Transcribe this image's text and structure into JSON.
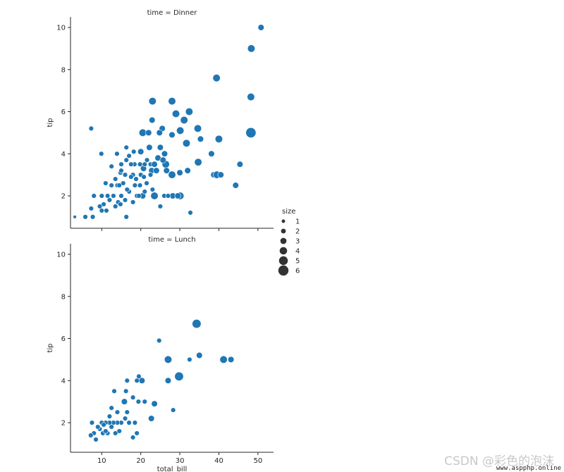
{
  "chart_data": {
    "type": "scatter",
    "x_field": "total_bill",
    "y_field": "tip",
    "xlabel": "total_bill",
    "ylabel": "tip",
    "xlim": [
      2,
      54
    ],
    "ylim": [
      0.5,
      10.5
    ],
    "x_ticks": [
      10,
      20,
      30,
      40,
      50
    ],
    "y_ticks": [
      2,
      4,
      6,
      8,
      10
    ],
    "grid": false,
    "point_color": "#1f77b4",
    "size_legend": {
      "title": "size",
      "placement": "right",
      "entries": [
        1,
        2,
        3,
        4,
        5,
        6
      ]
    },
    "panels": [
      {
        "title": "time = Dinner",
        "points": [
          [
            50.8,
            10.0,
            3
          ],
          [
            48.3,
            9.0,
            4
          ],
          [
            39.4,
            7.6,
            4
          ],
          [
            48.2,
            6.7,
            4
          ],
          [
            23.0,
            6.5,
            4
          ],
          [
            28.0,
            6.5,
            4
          ],
          [
            32.4,
            6.0,
            4
          ],
          [
            29.0,
            5.9,
            4
          ],
          [
            31.1,
            5.6,
            4
          ],
          [
            22.9,
            5.6,
            3
          ],
          [
            7.3,
            5.2,
            2
          ],
          [
            25.5,
            5.2,
            3
          ],
          [
            30.1,
            5.1,
            4
          ],
          [
            34.6,
            5.2,
            4
          ],
          [
            48.2,
            5.0,
            6
          ],
          [
            20.5,
            5.0,
            4
          ],
          [
            22.0,
            5.0,
            3
          ],
          [
            24.8,
            5.0,
            3
          ],
          [
            35.3,
            4.7,
            3
          ],
          [
            28.0,
            4.9,
            3
          ],
          [
            40.0,
            4.7,
            4
          ],
          [
            31.7,
            4.5,
            4
          ],
          [
            25.0,
            4.3,
            3
          ],
          [
            22.2,
            4.3,
            3
          ],
          [
            16.3,
            4.3,
            2
          ],
          [
            38.1,
            4.0,
            3
          ],
          [
            26.1,
            4.0,
            3
          ],
          [
            20.0,
            4.1,
            3
          ],
          [
            9.9,
            4.0,
            2
          ],
          [
            13.9,
            4.0,
            2
          ],
          [
            18.2,
            4.1,
            2
          ],
          [
            17.0,
            3.9,
            2
          ],
          [
            21.6,
            3.7,
            2
          ],
          [
            24.4,
            3.8,
            3
          ],
          [
            26.4,
            3.5,
            4
          ],
          [
            22.5,
            3.5,
            2
          ],
          [
            34.7,
            3.6,
            4
          ],
          [
            45.4,
            3.5,
            3
          ],
          [
            19.8,
            3.5,
            2
          ],
          [
            18.4,
            3.5,
            2
          ],
          [
            16.3,
            3.7,
            2
          ],
          [
            12.5,
            3.4,
            2
          ],
          [
            14.8,
            3.1,
            2
          ],
          [
            15.0,
            3.2,
            2
          ],
          [
            20.7,
            3.3,
            3
          ],
          [
            22.8,
            3.2,
            3
          ],
          [
            26.6,
            3.2,
            3
          ],
          [
            28.0,
            3.0,
            4
          ],
          [
            30.0,
            3.1,
            3
          ],
          [
            32.0,
            3.2,
            3
          ],
          [
            18.0,
            3.0,
            2
          ],
          [
            17.5,
            2.9,
            2
          ],
          [
            16.0,
            3.0,
            2
          ],
          [
            13.5,
            2.8,
            2
          ],
          [
            11.0,
            2.6,
            2
          ],
          [
            12.5,
            2.5,
            2
          ],
          [
            14.0,
            2.5,
            2
          ],
          [
            15.5,
            2.6,
            2
          ],
          [
            18.5,
            2.5,
            2
          ],
          [
            19.8,
            2.5,
            2
          ],
          [
            21.5,
            2.6,
            2
          ],
          [
            23.0,
            2.3,
            2
          ],
          [
            17.0,
            2.2,
            2
          ],
          [
            15.0,
            2.0,
            2
          ],
          [
            13.0,
            2.0,
            2
          ],
          [
            11.5,
            2.0,
            2
          ],
          [
            10.0,
            2.0,
            2
          ],
          [
            8.0,
            2.0,
            2
          ],
          [
            19.0,
            2.0,
            2
          ],
          [
            20.5,
            2.0,
            3
          ],
          [
            23.5,
            2.0,
            4
          ],
          [
            26.0,
            2.0,
            2
          ],
          [
            28.2,
            2.0,
            3
          ],
          [
            30.1,
            2.0,
            4
          ],
          [
            29.5,
            2.0,
            3
          ],
          [
            38.7,
            3.0,
            3
          ],
          [
            39.5,
            3.0,
            4
          ],
          [
            40.5,
            3.0,
            3
          ],
          [
            44.3,
            2.5,
            3
          ],
          [
            21.0,
            2.2,
            2
          ],
          [
            16.0,
            1.8,
            2
          ],
          [
            14.2,
            1.7,
            2
          ],
          [
            12.0,
            1.8,
            2
          ],
          [
            10.5,
            1.6,
            2
          ],
          [
            10.0,
            1.3,
            2
          ],
          [
            9.5,
            1.5,
            2
          ],
          [
            7.3,
            1.4,
            2
          ],
          [
            5.8,
            1.0,
            2
          ],
          [
            3.1,
            1.0,
            1
          ],
          [
            7.7,
            1.0,
            2
          ],
          [
            16.3,
            1.0,
            2
          ],
          [
            32.7,
            1.2,
            2
          ],
          [
            25.0,
            1.5,
            2
          ],
          [
            13.5,
            1.5,
            2
          ],
          [
            11.2,
            1.3,
            2
          ],
          [
            14.8,
            1.6,
            2
          ],
          [
            18.8,
            2.8,
            2
          ],
          [
            20.0,
            3.0,
            2
          ],
          [
            21.0,
            3.5,
            2
          ],
          [
            23.5,
            3.5,
            3
          ],
          [
            25.7,
            3.7,
            3
          ],
          [
            17.5,
            3.5,
            2
          ],
          [
            15.0,
            3.5,
            2
          ],
          [
            19.5,
            2.0,
            2
          ],
          [
            22.5,
            3.0,
            2
          ],
          [
            24.0,
            3.2,
            3
          ],
          [
            27.0,
            2.0,
            2
          ],
          [
            20.8,
            2.9,
            2
          ],
          [
            18.0,
            1.7,
            2
          ],
          [
            16.5,
            2.3,
            2
          ],
          [
            14.5,
            2.5,
            2
          ]
        ]
      },
      {
        "title": "time = Lunch",
        "points": [
          [
            34.3,
            6.7,
            5
          ],
          [
            24.7,
            5.9,
            2
          ],
          [
            35.0,
            5.2,
            3
          ],
          [
            41.2,
            5.0,
            4
          ],
          [
            43.1,
            5.0,
            3
          ],
          [
            27.0,
            5.0,
            4
          ],
          [
            32.5,
            5.0,
            2
          ],
          [
            29.8,
            4.2,
            5
          ],
          [
            27.0,
            4.0,
            3
          ],
          [
            20.3,
            4.0,
            3
          ],
          [
            19.0,
            4.0,
            2
          ],
          [
            16.5,
            4.0,
            2
          ],
          [
            19.5,
            4.2,
            2
          ],
          [
            13.2,
            3.5,
            2
          ],
          [
            16.2,
            3.5,
            2
          ],
          [
            18.0,
            3.2,
            2
          ],
          [
            21.0,
            3.0,
            2
          ],
          [
            23.5,
            2.9,
            3
          ],
          [
            19.4,
            3.0,
            2
          ],
          [
            15.8,
            3.0,
            3
          ],
          [
            28.3,
            2.6,
            2
          ],
          [
            12.5,
            2.7,
            2
          ],
          [
            14.0,
            2.5,
            2
          ],
          [
            16.5,
            2.5,
            2
          ],
          [
            22.7,
            2.2,
            3
          ],
          [
            18.5,
            2.0,
            2
          ],
          [
            17.0,
            2.0,
            2
          ],
          [
            15.0,
            2.0,
            2
          ],
          [
            14.0,
            2.0,
            2
          ],
          [
            13.0,
            2.0,
            2
          ],
          [
            12.0,
            2.0,
            2
          ],
          [
            11.0,
            2.0,
            2
          ],
          [
            10.0,
            2.0,
            2
          ],
          [
            7.5,
            2.0,
            2
          ],
          [
            10.5,
            1.9,
            2
          ],
          [
            9.5,
            1.7,
            2
          ],
          [
            8.0,
            1.5,
            2
          ],
          [
            10.3,
            1.5,
            2
          ],
          [
            11.5,
            1.5,
            2
          ],
          [
            12.5,
            1.8,
            2
          ],
          [
            14.5,
            1.6,
            2
          ],
          [
            18.0,
            1.3,
            2
          ],
          [
            19.0,
            1.5,
            2
          ],
          [
            8.5,
            1.2,
            2
          ],
          [
            7.2,
            1.4,
            2
          ],
          [
            9.0,
            1.8,
            2
          ],
          [
            16.0,
            2.2,
            2
          ],
          [
            12.0,
            2.3,
            2
          ],
          [
            13.5,
            1.5,
            2
          ],
          [
            11.0,
            1.6,
            2
          ]
        ]
      }
    ]
  },
  "watermark": {
    "text": "CSDN @彩色的泡沫",
    "subtext": "www.aspphp.online"
  }
}
